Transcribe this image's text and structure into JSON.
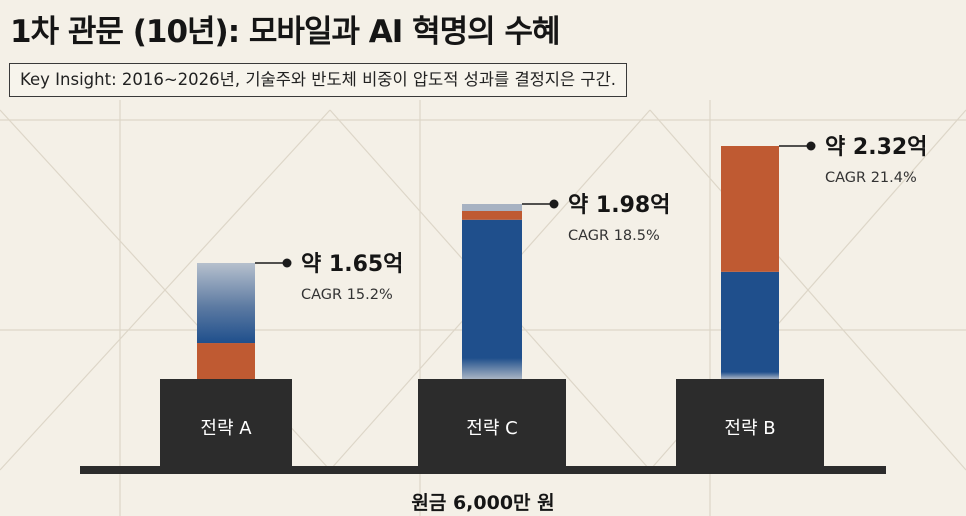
{
  "title": "1차 관문 (10년): 모바일과 AI 혁명의 수혜",
  "insight": "Key Insight: 2016~2026년, 기술주와 반도체 비중이 압도적 성과를 결정지은 구간.",
  "colors": {
    "background": "#f4f0e7",
    "base_block": "#2c2c2c",
    "orange": "#bf5a32",
    "blue": "#1f4f8c",
    "gray_blue": "#a7b2c2"
  },
  "chart_data": {
    "type": "bar",
    "stacked": true,
    "xlabel": "원금 6,000만 원",
    "categories": [
      "전략 A",
      "전략 C",
      "전략 B"
    ],
    "totals_label": [
      "약 1.65억",
      "약 1.98억",
      "약 2.32억"
    ],
    "cagr_label": [
      "CAGR 15.2%",
      "CAGR 18.5%",
      "CAGR 21.4%"
    ],
    "segments": [
      {
        "category": "전략 A",
        "parts": [
          {
            "color": "orange",
            "share": 0.31
          },
          {
            "color": "blue_fade",
            "share": 0.69
          }
        ]
      },
      {
        "category": "전략 C",
        "parts": [
          {
            "color": "blue_fade_up",
            "share": 0.12
          },
          {
            "color": "blue",
            "share": 0.79
          },
          {
            "color": "orange",
            "share": 0.05
          },
          {
            "color": "gray_blue",
            "share": 0.04
          }
        ]
      },
      {
        "category": "전략 B",
        "parts": [
          {
            "color": "blue_fade_up",
            "share": 0.03
          },
          {
            "color": "blue",
            "share": 0.43
          },
          {
            "color": "orange",
            "share": 0.54
          }
        ]
      }
    ]
  }
}
